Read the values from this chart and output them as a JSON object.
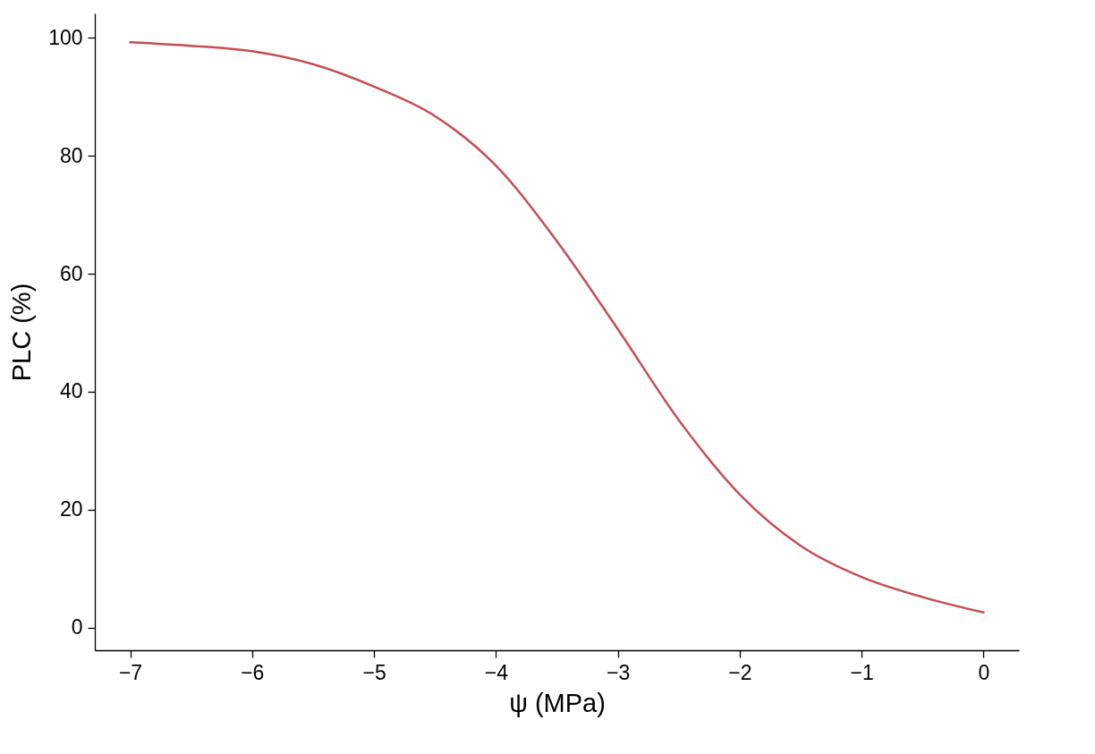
{
  "chart_data": {
    "type": "line",
    "xlabel": "ψ (MPa)",
    "ylabel": "PLC (%)",
    "x": [
      -7,
      -6.5,
      -6,
      -5.5,
      -5,
      -4.5,
      -4,
      -3.5,
      -3,
      -2.5,
      -2,
      -1.5,
      -1,
      -0.5,
      0
    ],
    "series": [
      {
        "color": "#c44e52",
        "values": [
          99.2,
          98.6,
          97.7,
          95.5,
          91.7,
          86.7,
          78.3,
          65.5,
          50.6,
          35.2,
          22.6,
          13.9,
          8.6,
          5.2,
          2.6
        ]
      }
    ],
    "xlim": [
      -7.29,
      0.29
    ],
    "xticks": [
      -7,
      -6,
      -5,
      -4,
      -3,
      -2,
      -1,
      0
    ],
    "ylim": [
      -3.8,
      104.1
    ],
    "yticks": [
      0,
      20,
      40,
      60,
      80,
      100
    ],
    "grid": false,
    "marker": "none",
    "line_style": "solid"
  }
}
